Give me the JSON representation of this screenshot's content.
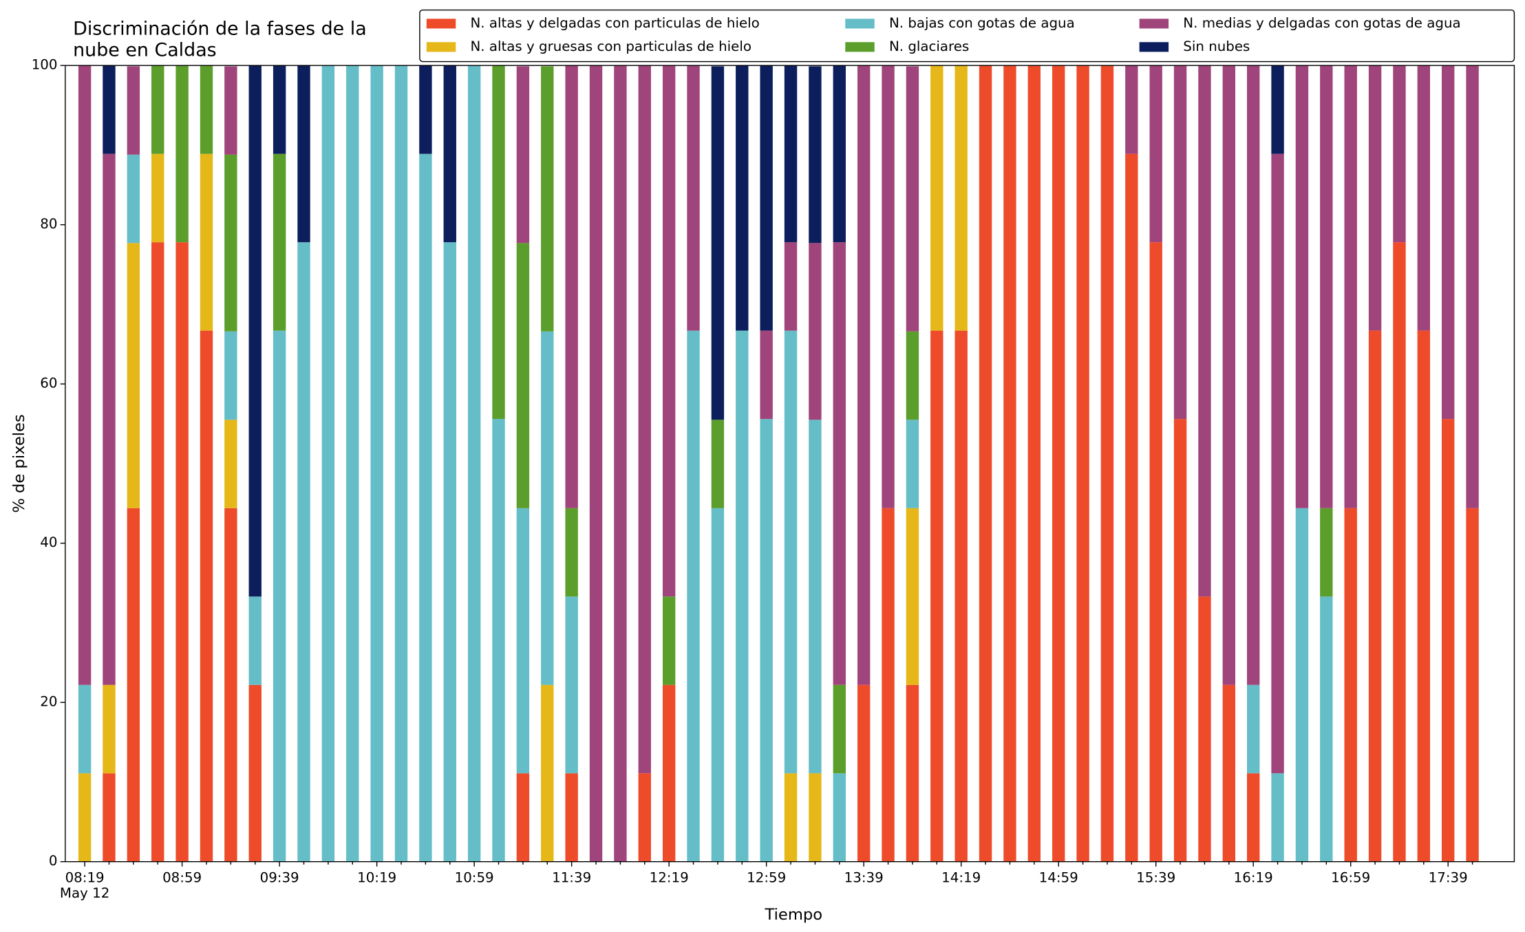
{
  "chart_data": {
    "type": "stacked_bar",
    "title": [
      "Discriminación de la fases de la",
      "nube en Caldas"
    ],
    "x_label": "Tiempo",
    "y_label": "% de pixeles",
    "date_label": "May 12",
    "categories": [
      "08:19",
      null,
      null,
      null,
      "08:59",
      null,
      null,
      null,
      "09:39",
      null,
      null,
      null,
      "10:19",
      null,
      null,
      null,
      "10:59",
      null,
      null,
      null,
      "11:39",
      null,
      null,
      null,
      "12:19",
      null,
      null,
      null,
      "12:59",
      null,
      null,
      null,
      "13:39",
      null,
      null,
      null,
      "14:19",
      null,
      null,
      null,
      "14:59",
      null,
      null,
      null,
      "15:39",
      null,
      null,
      null,
      "16:19",
      null,
      null,
      null,
      "16:59",
      null,
      null,
      null,
      "17:39",
      null
    ],
    "ylim": [
      0,
      100
    ],
    "yticks": [
      0,
      20,
      40,
      60,
      80,
      100
    ],
    "series": [
      {
        "name": "N. altas y delgadas con particulas de hielo",
        "color": "#ee4b2b",
        "values": [
          0,
          11.1,
          44.4,
          77.8,
          77.8,
          66.7,
          44.4,
          22.2,
          0,
          0,
          0,
          0,
          0,
          0,
          0,
          0,
          0,
          0,
          11.1,
          0,
          11.1,
          0,
          0,
          11.1,
          22.2,
          0,
          0,
          0,
          0,
          0,
          0,
          0,
          22.2,
          44.4,
          22.2,
          66.7,
          66.7,
          100,
          100,
          100,
          100,
          100,
          100,
          88.9,
          77.8,
          55.6,
          33.3,
          22.2,
          11.1,
          0,
          0,
          0,
          44.4,
          66.7,
          77.8,
          66.7,
          55.6,
          44.4
        ]
      },
      {
        "name": "N. altas y gruesas con particulas de hielo",
        "color": "#e5b718",
        "values": [
          11.1,
          11.1,
          33.3,
          11.1,
          0,
          22.2,
          11.1,
          0,
          0,
          0,
          0,
          0,
          0,
          0,
          0,
          0,
          0,
          0,
          0,
          22.2,
          0,
          0,
          0,
          0,
          0,
          0,
          0,
          0,
          0,
          11.1,
          11.1,
          0,
          0,
          0,
          22.2,
          33.3,
          33.3,
          0,
          0,
          0,
          0,
          0,
          0,
          0,
          0,
          0,
          0,
          0,
          0,
          0,
          0,
          0,
          0,
          0,
          0,
          0,
          0,
          0
        ]
      },
      {
        "name": "N. bajas con gotas de agua",
        "color": "#65bdc7",
        "values": [
          11.1,
          0,
          11.1,
          0,
          0,
          0,
          11.1,
          11.1,
          66.7,
          77.8,
          100,
          100,
          100,
          100,
          88.9,
          77.8,
          100,
          55.6,
          33.3,
          44.4,
          22.2,
          0,
          0,
          0,
          0,
          66.7,
          44.4,
          66.7,
          55.6,
          55.6,
          44.4,
          11.1,
          0,
          0,
          11.1,
          0,
          0,
          0,
          0,
          0,
          0,
          0,
          0,
          0,
          0,
          0,
          0,
          0,
          11.1,
          11.1,
          44.4,
          33.3,
          0,
          0,
          0,
          0,
          0,
          0
        ]
      },
      {
        "name": "N. glaciares",
        "color": "#5c9e2c",
        "values": [
          0,
          0,
          0,
          11.1,
          22.2,
          11.1,
          22.2,
          0,
          22.2,
          0,
          0,
          0,
          0,
          0,
          0,
          0,
          0,
          44.4,
          33.3,
          33.3,
          11.1,
          0,
          0,
          0,
          11.1,
          0,
          11.1,
          0,
          0,
          0,
          0,
          11.1,
          0,
          0,
          11.1,
          0,
          0,
          0,
          0,
          0,
          0,
          0,
          0,
          0,
          0,
          0,
          0,
          0,
          0,
          0,
          0,
          11.1,
          0,
          0,
          0,
          0,
          0,
          0
        ]
      },
      {
        "name": "N. medias y delgadas con gotas de agua",
        "color": "#a0457b",
        "values": [
          77.8,
          66.7,
          11.1,
          0,
          0,
          0,
          11.1,
          0,
          0,
          0,
          0,
          0,
          0,
          0,
          0,
          0,
          0,
          0,
          22.2,
          0,
          55.6,
          100,
          100,
          88.9,
          66.7,
          33.3,
          0,
          0,
          11.1,
          11.1,
          22.2,
          55.6,
          77.8,
          55.6,
          33.3,
          0,
          0,
          0,
          0,
          0,
          0,
          0,
          0,
          11.1,
          22.2,
          44.4,
          66.7,
          77.8,
          77.8,
          77.8,
          55.6,
          55.6,
          55.6,
          33.3,
          22.2,
          33.3,
          44.4,
          55.6
        ]
      },
      {
        "name": "Sin nubes",
        "color": "#0c1f5c",
        "values": [
          0,
          11.1,
          0,
          0,
          0,
          0,
          0,
          66.7,
          11.1,
          22.2,
          0,
          0,
          0,
          0,
          11.1,
          22.2,
          0,
          0,
          0,
          0,
          0,
          0,
          0,
          0,
          0,
          0,
          44.4,
          33.3,
          33.3,
          22.2,
          22.2,
          22.2,
          0,
          0,
          0,
          0,
          0,
          0,
          0,
          0,
          0,
          0,
          0,
          0,
          0,
          0,
          0,
          0,
          0,
          11.1,
          0,
          0,
          0,
          0,
          0,
          0,
          0,
          0
        ]
      }
    ]
  }
}
